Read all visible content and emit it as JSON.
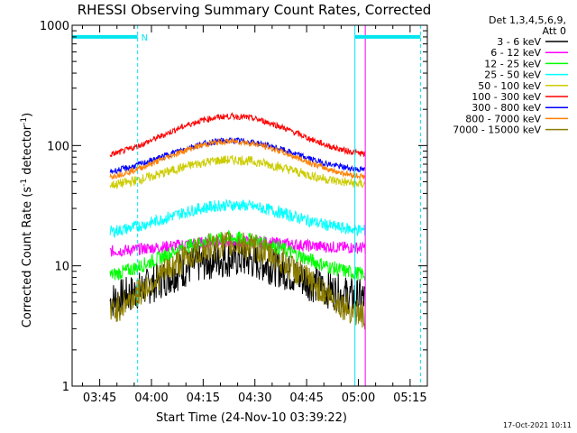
{
  "chart_data": {
    "type": "line",
    "title": "RHESSI Observing Summary Count Rates, Corrected",
    "xlabel": "Start Time (24-Nov-10 03:39:22)",
    "ylabel_main": "Corrected Count Rate (s",
    "ylabel_sup1": "-1",
    "ylabel_mid": " detector",
    "ylabel_sup2": "-1",
    "ylabel_end": ")",
    "yscale": "log",
    "ylim": [
      1,
      1000
    ],
    "xlim": [
      "03:37",
      "05:20"
    ],
    "x_ticks": [
      "03:45",
      "04:00",
      "04:15",
      "04:30",
      "04:45",
      "05:00",
      "05:15"
    ],
    "y_ticks": [
      "1",
      "10",
      "100",
      "1000"
    ],
    "legend_title_1": "Det 1,3,4,5,6,9,",
    "legend_title_2": "Att 0",
    "data_window": [
      "03:48",
      "05:02"
    ],
    "night_marks": [
      {
        "time": "03:37",
        "color": "#00e5ee",
        "style": "solid"
      },
      {
        "time": "03:56",
        "color": "#00e5ee",
        "style": "dashed",
        "label": "N"
      },
      {
        "time": "04:59",
        "color": "#00e5ee",
        "style": "solid"
      },
      {
        "time": "05:18",
        "color": "#00e5ee",
        "style": "dashed"
      },
      {
        "time": "05:02",
        "color": "#ff00ff",
        "style": "solid"
      }
    ],
    "night_bars": [
      {
        "from": "03:37",
        "to": "03:56",
        "y": 800
      },
      {
        "from": "04:59",
        "to": "05:18",
        "y": 800
      }
    ],
    "series": [
      {
        "name": "3 - 6 keV",
        "color": "#000000",
        "start": 4.5,
        "peak": 11.5,
        "end": 5.0,
        "noise": 0.16
      },
      {
        "name": "6 - 12 keV",
        "color": "#ff00ff",
        "start": 13,
        "peak": 16,
        "end": 14,
        "noise": 0.05
      },
      {
        "name": "12 - 25 keV",
        "color": "#00ff00",
        "start": 7.5,
        "peak": 17,
        "end": 8,
        "noise": 0.06
      },
      {
        "name": "25 - 50 keV",
        "color": "#00ffff",
        "start": 18,
        "peak": 32,
        "end": 19,
        "noise": 0.05
      },
      {
        "name": "50 - 100 keV",
        "color": "#cccc00",
        "start": 44,
        "peak": 76,
        "end": 46,
        "noise": 0.04
      },
      {
        "name": "100 - 300 keV",
        "color": "#ff0000",
        "start": 75,
        "peak": 175,
        "end": 80,
        "noise": 0.025
      },
      {
        "name": "300 - 800 keV",
        "color": "#0000ff",
        "start": 56,
        "peak": 110,
        "end": 60,
        "noise": 0.025
      },
      {
        "name": "800 - 7000 keV",
        "color": "#ff8000",
        "start": 50,
        "peak": 108,
        "end": 52,
        "noise": 0.025
      },
      {
        "name": "7000 - 15000 keV",
        "color": "#8b7d00",
        "start": 3.0,
        "peak": 15,
        "end": 3.2,
        "noise": 0.12
      }
    ],
    "peak_time": "04:23",
    "grid": false,
    "legend_placement": "top-right"
  },
  "timestamp": "17-Oct-2021 10:11"
}
